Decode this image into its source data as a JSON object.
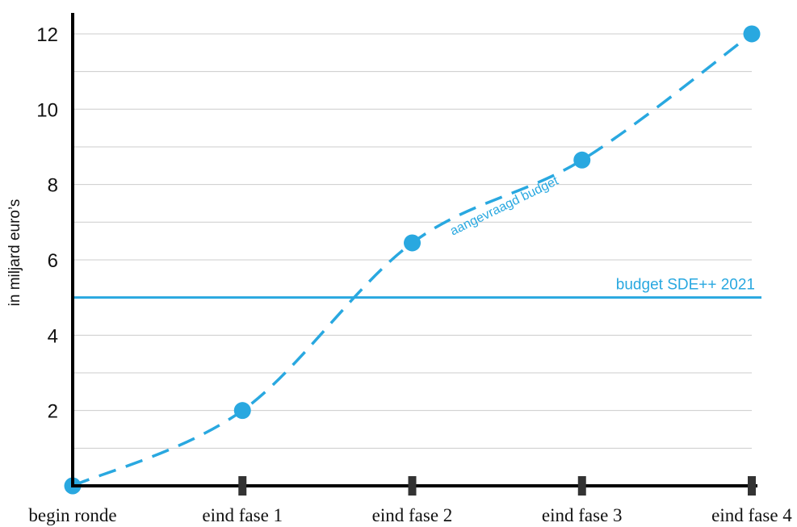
{
  "chart_data": {
    "type": "line",
    "categories": [
      "begin ronde",
      "eind fase 1",
      "eind fase 2",
      "eind fase 3",
      "eind fase 4"
    ],
    "series": [
      {
        "name": "aangevraagd budget",
        "values": [
          0,
          2,
          6.45,
          8.65,
          12
        ]
      }
    ],
    "reference_line": {
      "label": "budget SDE++ 2021",
      "value": 5
    },
    "title": "",
    "xlabel": "",
    "ylabel": "in miljard euro’s",
    "ylim": [
      0,
      12.5
    ],
    "yticks": [
      2,
      4,
      6,
      8,
      10,
      12
    ],
    "grid": "horizontal",
    "colors": {
      "series": "#29a8e0",
      "axis": "#000000",
      "grid": "#cccccc",
      "tick_mark": "#333333"
    }
  }
}
